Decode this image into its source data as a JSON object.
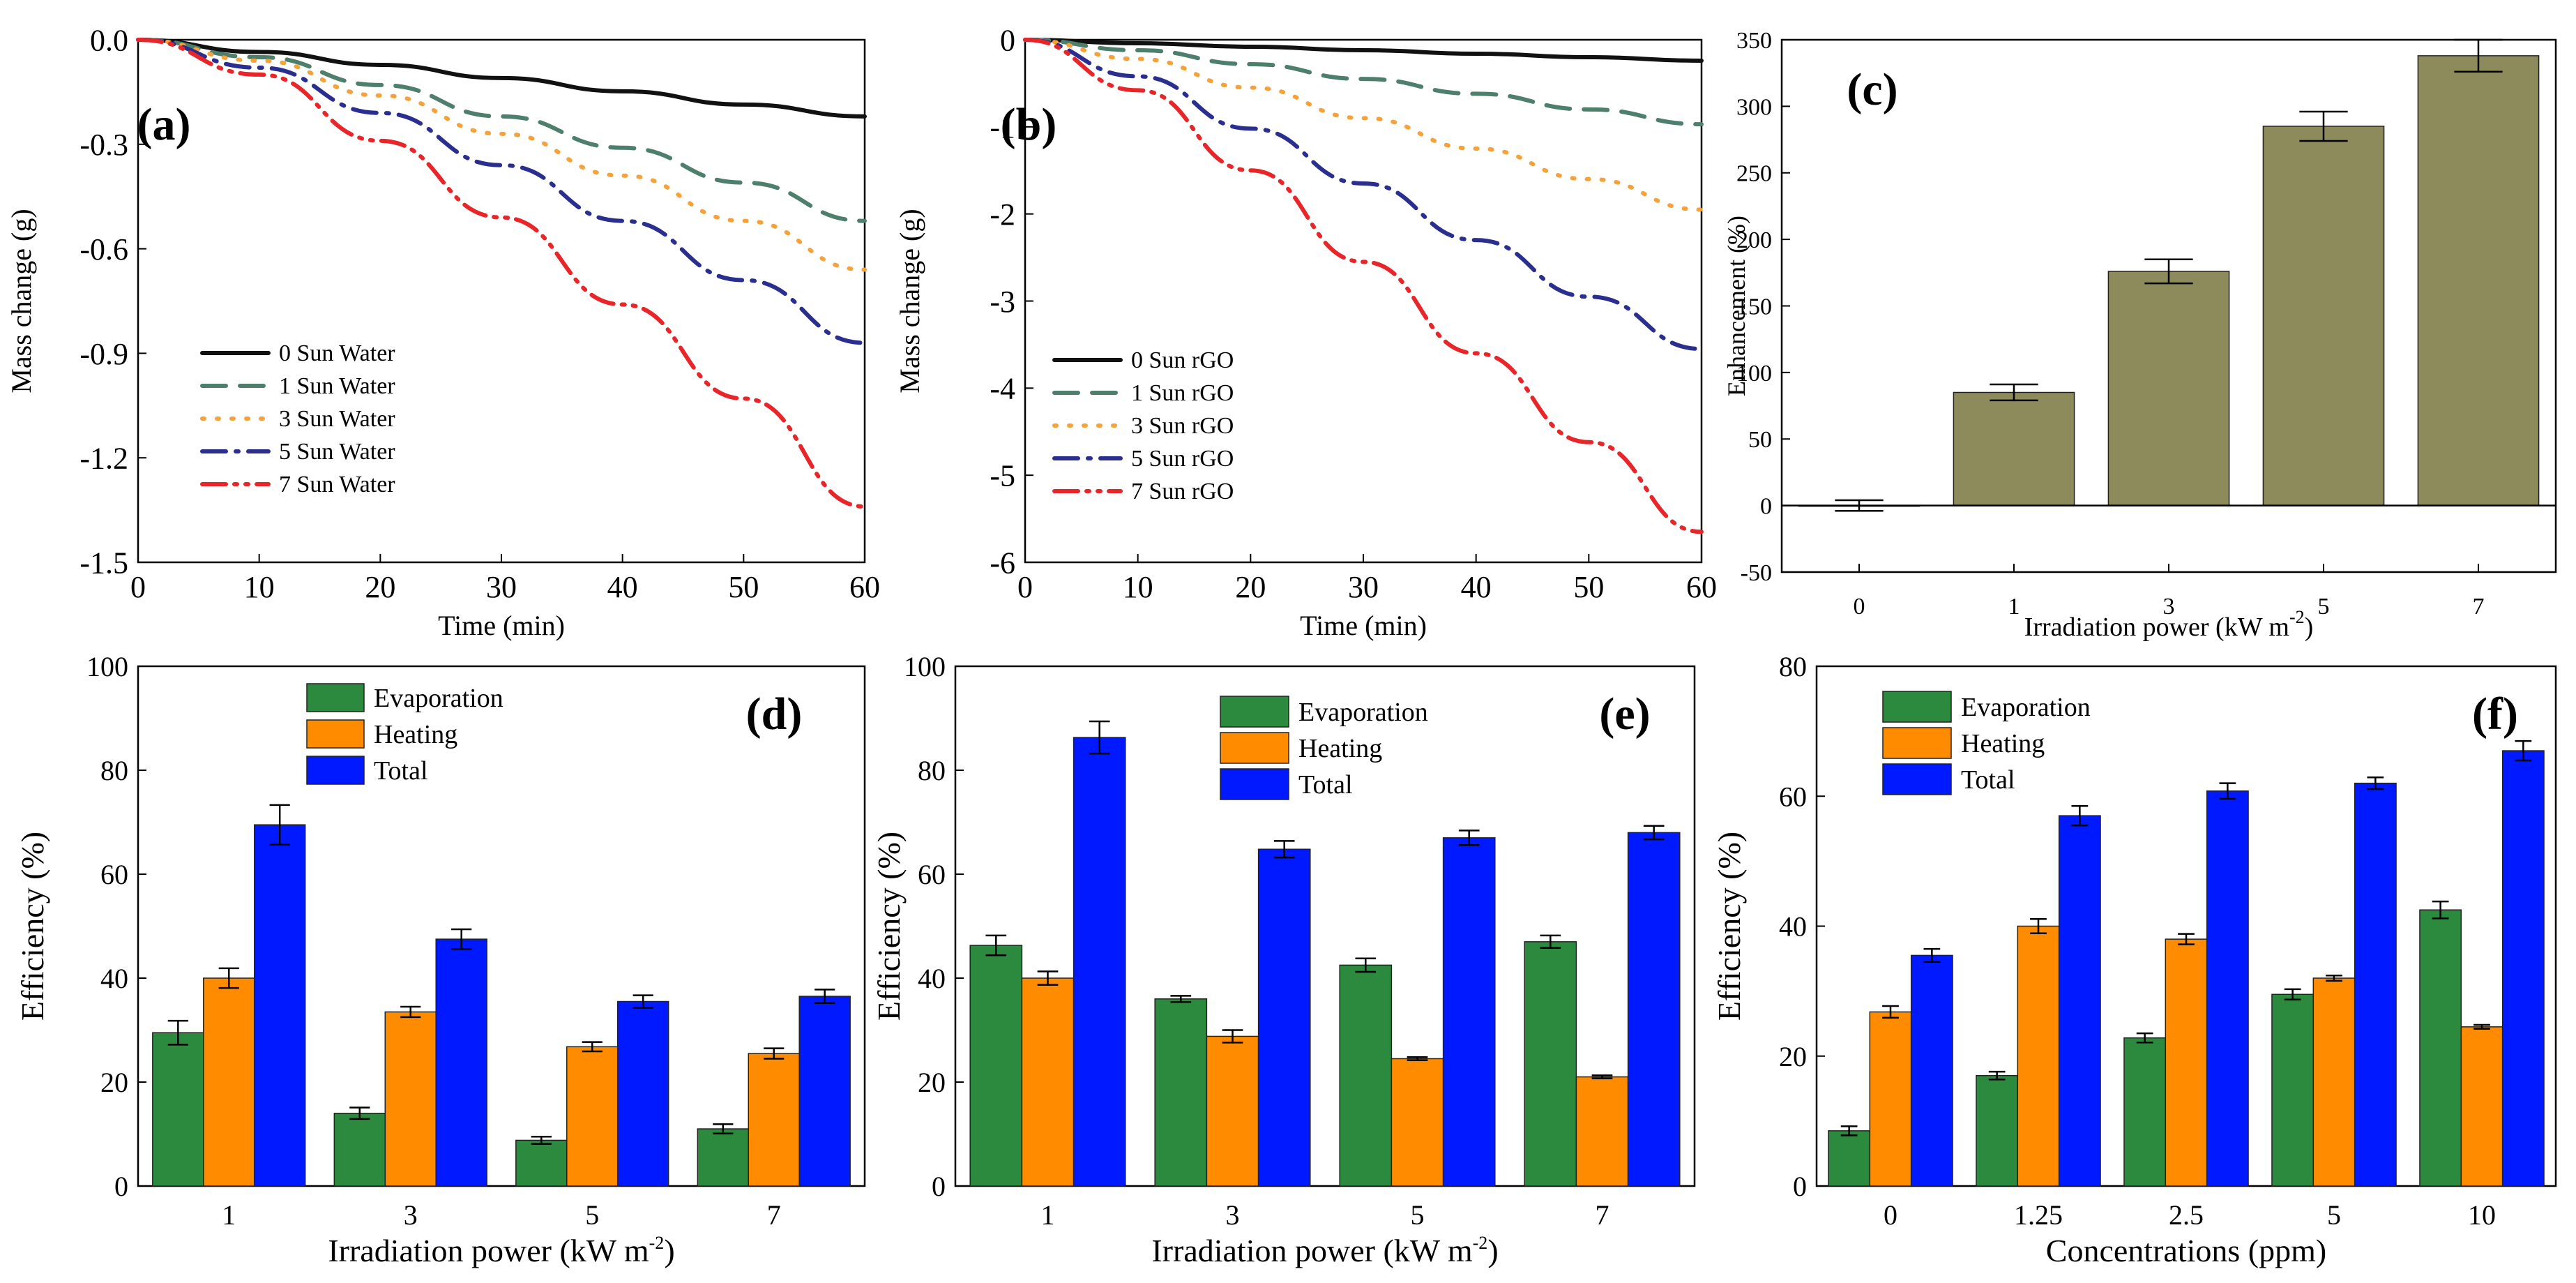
{
  "chart_data": [
    {
      "id": "a",
      "panel_label": "(a)",
      "type": "line",
      "xlabel": "Time (min)",
      "ylabel": "Mass change (g)",
      "xlim": [
        0,
        60
      ],
      "ylim": [
        -1.5,
        0.0
      ],
      "xticks": [
        0,
        10,
        20,
        30,
        40,
        50,
        60
      ],
      "xtick_labels": [
        "0",
        "10",
        "20",
        "30",
        "40",
        "50",
        "60"
      ],
      "yticks": [
        0.0,
        -0.3,
        -0.6,
        -0.9,
        -1.2,
        -1.5
      ],
      "ytick_labels": [
        "0.0",
        "-0.3",
        "-0.6",
        "-0.9",
        "-1.2",
        "-1.5"
      ],
      "legend_position": "bottom-left",
      "series": [
        {
          "name": "0 Sun Water",
          "color": "#111111",
          "dash": "solid",
          "x": [
            0,
            10,
            20,
            30,
            40,
            50,
            60
          ],
          "values": [
            0,
            -0.035,
            -0.072,
            -0.11,
            -0.148,
            -0.186,
            -0.22
          ]
        },
        {
          "name": "1 Sun Water",
          "color": "#4e7e6c",
          "dash": "dash",
          "x": [
            0,
            10,
            20,
            30,
            40,
            50,
            60
          ],
          "values": [
            0,
            -0.05,
            -0.13,
            -0.22,
            -0.31,
            -0.41,
            -0.52
          ]
        },
        {
          "name": "3 Sun Water",
          "color": "#f5a23b",
          "dash": "dot",
          "x": [
            0,
            10,
            20,
            30,
            40,
            50,
            60
          ],
          "values": [
            0,
            -0.06,
            -0.16,
            -0.27,
            -0.39,
            -0.52,
            -0.66
          ]
        },
        {
          "name": "5 Sun Water",
          "color": "#2a2f8f",
          "dash": "dashdot",
          "x": [
            0,
            10,
            20,
            30,
            40,
            50,
            60
          ],
          "values": [
            0,
            -0.08,
            -0.21,
            -0.36,
            -0.52,
            -0.69,
            -0.87
          ]
        },
        {
          "name": "7 Sun Water",
          "color": "#e8262a",
          "dash": "dashdotdot",
          "x": [
            0,
            10,
            20,
            30,
            40,
            50,
            60
          ],
          "values": [
            0,
            -0.1,
            -0.29,
            -0.51,
            -0.76,
            -1.03,
            -1.34
          ]
        }
      ]
    },
    {
      "id": "b",
      "panel_label": "(b)",
      "type": "line",
      "xlabel": "Time (min)",
      "ylabel": "Mass change (g)",
      "xlim": [
        0,
        60
      ],
      "ylim": [
        -6,
        0
      ],
      "xticks": [
        0,
        10,
        20,
        30,
        40,
        50,
        60
      ],
      "xtick_labels": [
        "0",
        "10",
        "20",
        "30",
        "40",
        "50",
        "60"
      ],
      "yticks": [
        0,
        -1,
        -2,
        -3,
        -4,
        -5,
        -6
      ],
      "ytick_labels": [
        "0",
        "-1",
        "-2",
        "-3",
        "-4",
        "-5",
        "-6"
      ],
      "legend_position": "bottom-left",
      "series": [
        {
          "name": "0 Sun rGO",
          "color": "#111111",
          "dash": "solid",
          "x": [
            0,
            10,
            20,
            30,
            40,
            50,
            60
          ],
          "values": [
            0,
            -0.04,
            -0.08,
            -0.12,
            -0.16,
            -0.2,
            -0.24
          ]
        },
        {
          "name": "1 Sun rGO",
          "color": "#4e7e6c",
          "dash": "dash",
          "x": [
            0,
            10,
            20,
            30,
            40,
            50,
            60
          ],
          "values": [
            0,
            -0.12,
            -0.28,
            -0.45,
            -0.62,
            -0.8,
            -0.97
          ]
        },
        {
          "name": "3 Sun rGO",
          "color": "#f5a23b",
          "dash": "dot",
          "x": [
            0,
            10,
            20,
            30,
            40,
            50,
            60
          ],
          "values": [
            0,
            -0.22,
            -0.55,
            -0.9,
            -1.25,
            -1.6,
            -1.95
          ]
        },
        {
          "name": "5 Sun rGO",
          "color": "#2a2f8f",
          "dash": "dashdot",
          "x": [
            0,
            10,
            20,
            30,
            40,
            50,
            60
          ],
          "values": [
            0,
            -0.42,
            -1.02,
            -1.65,
            -2.3,
            -2.95,
            -3.55
          ]
        },
        {
          "name": "7 Sun rGO",
          "color": "#e8262a",
          "dash": "dashdotdot",
          "x": [
            0,
            10,
            20,
            30,
            40,
            50,
            60
          ],
          "values": [
            0,
            -0.58,
            -1.5,
            -2.55,
            -3.6,
            -4.62,
            -5.65
          ]
        }
      ]
    },
    {
      "id": "c",
      "panel_label": "(c)",
      "type": "bar",
      "xlabel": "Irradiation power (kW m",
      "xlabel_sup": "-2",
      "xlabel_end": ")",
      "ylabel": "Enhancement (%)",
      "ylim": [
        -50,
        350
      ],
      "yticks": [
        -50,
        0,
        50,
        100,
        150,
        200,
        250,
        300,
        350
      ],
      "ytick_labels": [
        "-50",
        "0",
        "50",
        "100",
        "150",
        "200",
        "250",
        "300",
        "350"
      ],
      "categories": [
        "0",
        "1",
        "3",
        "5",
        "7"
      ],
      "series": [
        {
          "name": "Enhancement",
          "color": "#8d8b5c",
          "values": [
            0,
            85,
            176,
            285,
            338
          ],
          "errors": [
            4,
            6,
            9,
            11,
            12
          ]
        }
      ]
    },
    {
      "id": "d",
      "panel_label": "(d)",
      "type": "bar",
      "xlabel": "Irradiation power (kW m",
      "xlabel_sup": "-2",
      "xlabel_end": ")",
      "ylabel": "Efficiency (%)",
      "ylim": [
        0,
        100
      ],
      "yticks": [
        0,
        20,
        40,
        60,
        80,
        100
      ],
      "ytick_labels": [
        "0",
        "20",
        "40",
        "60",
        "80",
        "100"
      ],
      "categories": [
        "1",
        "3",
        "5",
        "7"
      ],
      "legend_position": "top-center",
      "series": [
        {
          "name": "Evaporation",
          "color": "#2b8a3e",
          "values": [
            29.5,
            14,
            8.8,
            11
          ],
          "errors": [
            2.3,
            1.1,
            0.7,
            0.9
          ]
        },
        {
          "name": "Heating",
          "color": "#ff8c00",
          "values": [
            40,
            33.5,
            26.8,
            25.5
          ],
          "errors": [
            1.9,
            1.0,
            0.9,
            1.0
          ]
        },
        {
          "name": "Total",
          "color": "#0019ff",
          "values": [
            69.5,
            47.5,
            35.5,
            36.5
          ],
          "errors": [
            3.8,
            1.9,
            1.2,
            1.3
          ]
        }
      ]
    },
    {
      "id": "e",
      "panel_label": "(e)",
      "type": "bar",
      "xlabel": "Irradiation power (kW m",
      "xlabel_sup": "-2",
      "xlabel_end": ")",
      "ylabel": "Efficiency (%)",
      "ylim": [
        0,
        100
      ],
      "yticks": [
        0,
        20,
        40,
        60,
        80,
        100
      ],
      "ytick_labels": [
        "0",
        "20",
        "40",
        "60",
        "80",
        "100"
      ],
      "categories": [
        "1",
        "3",
        "5",
        "7"
      ],
      "legend_position": "top-center",
      "series": [
        {
          "name": "Evaporation",
          "color": "#2b8a3e",
          "values": [
            46.3,
            36,
            42.5,
            47
          ],
          "errors": [
            1.9,
            0.6,
            1.3,
            1.2
          ]
        },
        {
          "name": "Heating",
          "color": "#ff8c00",
          "values": [
            40,
            28.8,
            24.5,
            21
          ],
          "errors": [
            1.3,
            1.2,
            0.3,
            0.3
          ]
        },
        {
          "name": "Total",
          "color": "#0019ff",
          "values": [
            86.3,
            64.8,
            67,
            68
          ],
          "errors": [
            3.1,
            1.6,
            1.4,
            1.3
          ]
        }
      ]
    },
    {
      "id": "f",
      "panel_label": "(f)",
      "type": "bar",
      "xlabel": "Concentrations (ppm)",
      "xlabel_sup": "",
      "xlabel_end": "",
      "ylabel": "Efficiency (%)",
      "ylim": [
        0,
        80
      ],
      "yticks": [
        0,
        20,
        40,
        60,
        80
      ],
      "ytick_labels": [
        "0",
        "20",
        "40",
        "60",
        "80"
      ],
      "categories": [
        "0",
        "1.25",
        "2.5",
        "5",
        "10"
      ],
      "legend_position": "top-left",
      "series": [
        {
          "name": "Evaporation",
          "color": "#2b8a3e",
          "values": [
            8.5,
            17,
            22.8,
            29.5,
            42.5
          ],
          "errors": [
            0.7,
            0.6,
            0.7,
            0.8,
            1.3
          ]
        },
        {
          "name": "Heating",
          "color": "#ff8c00",
          "values": [
            26.8,
            40,
            38,
            32,
            24.5
          ],
          "errors": [
            0.9,
            1.1,
            0.8,
            0.4,
            0.3
          ]
        },
        {
          "name": "Total",
          "color": "#0019ff",
          "values": [
            35.5,
            57,
            60.8,
            62,
            67
          ],
          "errors": [
            1.0,
            1.5,
            1.2,
            0.9,
            1.5
          ]
        }
      ]
    }
  ]
}
